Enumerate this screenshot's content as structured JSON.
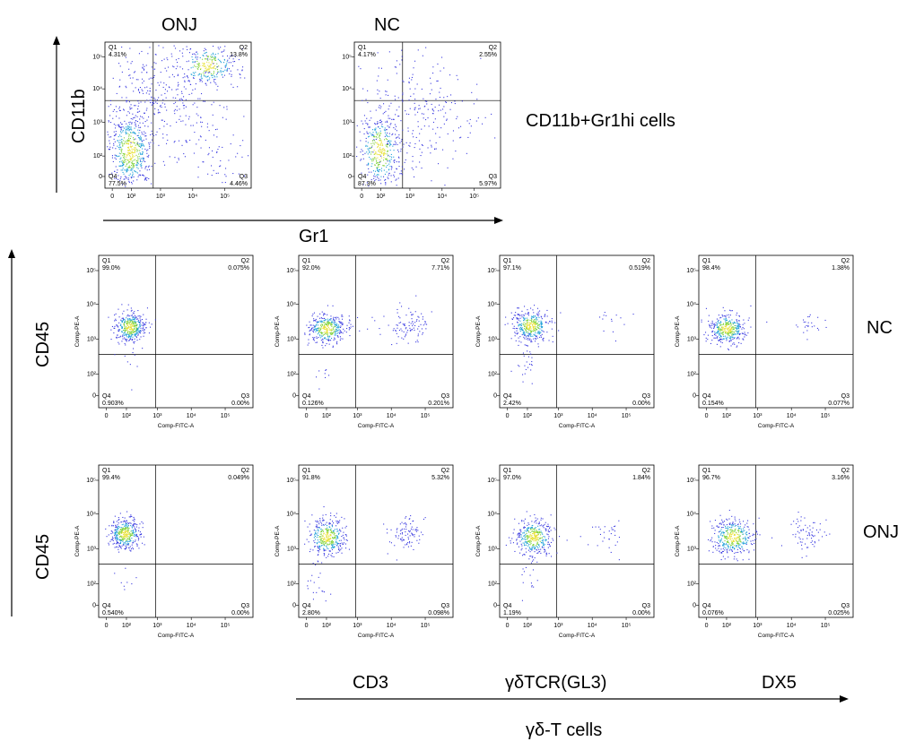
{
  "colors": {
    "dots": "#3a3ae0",
    "dense_mid": "#1fa0d8",
    "dense_hot": "#7fd23a",
    "dense_core": "#e8e23a",
    "ink": "#000000"
  },
  "labels": {
    "top_onj": "ONJ",
    "top_nc": "NC",
    "y_cd11b": "CD11b",
    "x_gr1": "Gr1",
    "cells_label": "CD11b+Gr1hi cells",
    "y_cd45_top": "CD45",
    "y_cd45_bottom": "CD45",
    "row_nc": "NC",
    "row_onj": "ONJ",
    "col_cd3": "CD3",
    "col_gdtcr": "γδTCR(GL3)",
    "col_dx5": "DX5",
    "gdt_cells": "γδ-T cells"
  },
  "chart_data": [
    {
      "type": "scatter",
      "panel": "ONJ CD11b vs Gr1",
      "quadrants": {
        "Q1": "4.31%",
        "Q2": "13.8%",
        "Q3": "4.46%",
        "Q4": "77.5%"
      },
      "x_ticks": [
        "0",
        "10²",
        "10³",
        "10⁴",
        "10⁵"
      ],
      "y_ticks": [
        "0",
        "10²",
        "10³",
        "10⁴",
        "10⁵"
      ]
    },
    {
      "type": "scatter",
      "panel": "NC CD11b vs Gr1",
      "quadrants": {
        "Q1": "4.17%",
        "Q2": "2.55%",
        "Q3": "5.97%",
        "Q4": "87.3%"
      },
      "x_ticks": [
        "0",
        "10²",
        "10³",
        "10⁴",
        "10⁵"
      ],
      "y_ticks": [
        "0",
        "10²",
        "10³",
        "10⁴",
        "10⁵"
      ]
    },
    {
      "type": "scatter",
      "panel": "NC CD45",
      "quadrants": {
        "Q1": "99.0%",
        "Q2": "0.075%",
        "Q3": "0.00%",
        "Q4": "0.903%"
      },
      "xlabel": "Comp-FITC-A",
      "ylabel": "Comp-PE-A"
    },
    {
      "type": "scatter",
      "panel": "NC CD3",
      "quadrants": {
        "Q1": "92.0%",
        "Q2": "7.71%",
        "Q3": "0.201%",
        "Q4": "0.126%"
      },
      "xlabel": "Comp-FITC-A",
      "ylabel": "Comp-PE-A"
    },
    {
      "type": "scatter",
      "panel": "NC γδTCR(GL3)",
      "quadrants": {
        "Q1": "97.1%",
        "Q2": "0.519%",
        "Q3": "0.00%",
        "Q4": "2.42%"
      },
      "xlabel": "Comp-FITC-A",
      "ylabel": "Comp-PE-A"
    },
    {
      "type": "scatter",
      "panel": "NC DX5",
      "quadrants": {
        "Q1": "98.4%",
        "Q2": "1.38%",
        "Q3": "0.077%",
        "Q4": "0.154%"
      },
      "xlabel": "Comp-FITC-A",
      "ylabel": "Comp-PE-A"
    },
    {
      "type": "scatter",
      "panel": "ONJ CD45",
      "quadrants": {
        "Q1": "99.4%",
        "Q2": "0.049%",
        "Q3": "0.00%",
        "Q4": "0.540%"
      },
      "xlabel": "Comp-FITC-A",
      "ylabel": "Comp-PE-A"
    },
    {
      "type": "scatter",
      "panel": "ONJ CD3",
      "quadrants": {
        "Q1": "91.8%",
        "Q2": "5.32%",
        "Q3": "0.098%",
        "Q4": "2.80%"
      },
      "xlabel": "Comp-FITC-A",
      "ylabel": "Comp-PE-A"
    },
    {
      "type": "scatter",
      "panel": "ONJ γδTCR(GL3)",
      "quadrants": {
        "Q1": "97.0%",
        "Q2": "1.84%",
        "Q3": "0.00%",
        "Q4": "1.19%"
      },
      "xlabel": "Comp-FITC-A",
      "ylabel": "Comp-PE-A"
    },
    {
      "type": "scatter",
      "panel": "ONJ DX5",
      "quadrants": {
        "Q1": "96.7%",
        "Q2": "3.16%",
        "Q3": "0.025%",
        "Q4": "0.076%"
      },
      "xlabel": "Comp-FITC-A",
      "ylabel": "Comp-PE-A"
    }
  ]
}
